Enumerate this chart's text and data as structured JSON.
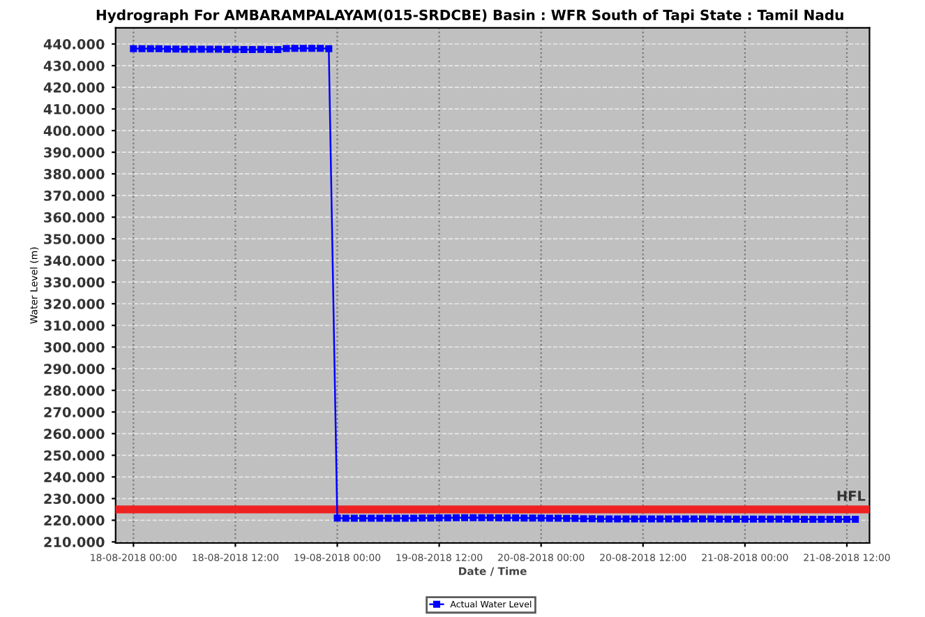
{
  "chart_data": {
    "type": "line",
    "title": "Hydrograph For AMBARAMPALAYAM(015-SRDCBE) Basin : WFR South of Tapi State : Tamil Nadu",
    "xlabel": "Date / Time",
    "ylabel": "Water Level (m)",
    "x": [
      "2018-08-18T00:00",
      "2018-08-18T01:00",
      "2018-08-18T02:00",
      "2018-08-18T03:00",
      "2018-08-18T04:00",
      "2018-08-18T05:00",
      "2018-08-18T06:00",
      "2018-08-18T07:00",
      "2018-08-18T08:00",
      "2018-08-18T09:00",
      "2018-08-18T10:00",
      "2018-08-18T11:00",
      "2018-08-18T12:00",
      "2018-08-18T13:00",
      "2018-08-18T14:00",
      "2018-08-18T15:00",
      "2018-08-18T16:00",
      "2018-08-18T17:00",
      "2018-08-18T18:00",
      "2018-08-18T19:00",
      "2018-08-18T20:00",
      "2018-08-18T21:00",
      "2018-08-18T22:00",
      "2018-08-18T23:00",
      "2018-08-19T00:00",
      "2018-08-19T01:00",
      "2018-08-19T02:00",
      "2018-08-19T03:00",
      "2018-08-19T04:00",
      "2018-08-19T05:00",
      "2018-08-19T06:00",
      "2018-08-19T07:00",
      "2018-08-19T08:00",
      "2018-08-19T09:00",
      "2018-08-19T10:00",
      "2018-08-19T11:00",
      "2018-08-19T12:00",
      "2018-08-19T13:00",
      "2018-08-19T14:00",
      "2018-08-19T15:00",
      "2018-08-19T16:00",
      "2018-08-19T17:00",
      "2018-08-19T18:00",
      "2018-08-19T19:00",
      "2018-08-19T20:00",
      "2018-08-19T21:00",
      "2018-08-19T22:00",
      "2018-08-19T23:00",
      "2018-08-20T00:00",
      "2018-08-20T01:00",
      "2018-08-20T02:00",
      "2018-08-20T03:00",
      "2018-08-20T04:00",
      "2018-08-20T05:00",
      "2018-08-20T06:00",
      "2018-08-20T07:00",
      "2018-08-20T08:00",
      "2018-08-20T09:00",
      "2018-08-20T10:00",
      "2018-08-20T11:00",
      "2018-08-20T12:00",
      "2018-08-20T13:00",
      "2018-08-20T14:00",
      "2018-08-20T15:00",
      "2018-08-20T16:00",
      "2018-08-20T17:00",
      "2018-08-20T18:00",
      "2018-08-20T19:00",
      "2018-08-20T20:00",
      "2018-08-20T21:00",
      "2018-08-20T22:00",
      "2018-08-20T23:00",
      "2018-08-21T00:00",
      "2018-08-21T01:00",
      "2018-08-21T02:00",
      "2018-08-21T03:00",
      "2018-08-21T04:00",
      "2018-08-21T05:00",
      "2018-08-21T06:00",
      "2018-08-21T07:00",
      "2018-08-21T08:00",
      "2018-08-21T09:00",
      "2018-08-21T10:00",
      "2018-08-21T11:00",
      "2018-08-21T12:00",
      "2018-08-21T13:00"
    ],
    "series": [
      {
        "name": "Actual Water Level",
        "color": "#0000ff",
        "values": [
          437.8,
          437.8,
          437.8,
          437.8,
          437.7,
          437.7,
          437.6,
          437.6,
          437.6,
          437.6,
          437.6,
          437.5,
          437.5,
          437.4,
          437.4,
          437.5,
          437.4,
          437.4,
          437.9,
          438.0,
          438.0,
          438.0,
          438.0,
          437.8,
          221.0,
          220.9,
          220.9,
          220.9,
          220.9,
          220.9,
          220.9,
          220.9,
          220.9,
          220.9,
          221.0,
          221.0,
          221.1,
          221.1,
          221.2,
          221.2,
          221.2,
          221.2,
          221.2,
          221.1,
          221.1,
          221.1,
          221.0,
          221.0,
          221.0,
          220.9,
          220.9,
          220.8,
          220.8,
          220.7,
          220.7,
          220.6,
          220.6,
          220.6,
          220.6,
          220.6,
          220.6,
          220.6,
          220.6,
          220.6,
          220.6,
          220.6,
          220.6,
          220.6,
          220.6,
          220.5,
          220.5,
          220.5,
          220.5,
          220.5,
          220.5,
          220.5,
          220.5,
          220.5,
          220.5,
          220.4,
          220.4,
          220.4,
          220.4,
          220.4,
          220.4,
          220.4
        ]
      }
    ],
    "xlim": [
      "2018-08-17T21:54",
      "2018-08-21T14:40"
    ],
    "xticks": [
      {
        "value": "2018-08-18T00:00",
        "label": "18-08-2018 00:00"
      },
      {
        "value": "2018-08-18T12:00",
        "label": "18-08-2018 12:00"
      },
      {
        "value": "2018-08-19T00:00",
        "label": "19-08-2018 00:00"
      },
      {
        "value": "2018-08-19T12:00",
        "label": "19-08-2018 12:00"
      },
      {
        "value": "2018-08-20T00:00",
        "label": "20-08-2018 00:00"
      },
      {
        "value": "2018-08-20T12:00",
        "label": "20-08-2018 12:00"
      },
      {
        "value": "2018-08-21T00:00",
        "label": "21-08-2018 00:00"
      },
      {
        "value": "2018-08-21T12:00",
        "label": "21-08-2018 12:00"
      }
    ],
    "ylim": [
      209.5,
      447.5
    ],
    "yticks": [
      {
        "value": 210,
        "label": "210.000"
      },
      {
        "value": 220,
        "label": "220.000"
      },
      {
        "value": 230,
        "label": "230.000"
      },
      {
        "value": 240,
        "label": "240.000"
      },
      {
        "value": 250,
        "label": "250.000"
      },
      {
        "value": 260,
        "label": "260.000"
      },
      {
        "value": 270,
        "label": "270.000"
      },
      {
        "value": 280,
        "label": "280.000"
      },
      {
        "value": 290,
        "label": "290.000"
      },
      {
        "value": 300,
        "label": "300.000"
      },
      {
        "value": 310,
        "label": "310.000"
      },
      {
        "value": 320,
        "label": "320.000"
      },
      {
        "value": 330,
        "label": "330.000"
      },
      {
        "value": 340,
        "label": "340.000"
      },
      {
        "value": 350,
        "label": "350.000"
      },
      {
        "value": 360,
        "label": "360.000"
      },
      {
        "value": 370,
        "label": "370.000"
      },
      {
        "value": 380,
        "label": "380.000"
      },
      {
        "value": 390,
        "label": "390.000"
      },
      {
        "value": 400,
        "label": "400.000"
      },
      {
        "value": 410,
        "label": "410.000"
      },
      {
        "value": 420,
        "label": "420.000"
      },
      {
        "value": 430,
        "label": "430.000"
      },
      {
        "value": 440,
        "label": "440.000"
      }
    ],
    "ref_lines": [
      {
        "axis": "y",
        "value": 225,
        "label": "HFL",
        "color": "#ee2222"
      }
    ],
    "grid": true,
    "legend": "bottom",
    "marker": "square",
    "line_style": "solid"
  }
}
